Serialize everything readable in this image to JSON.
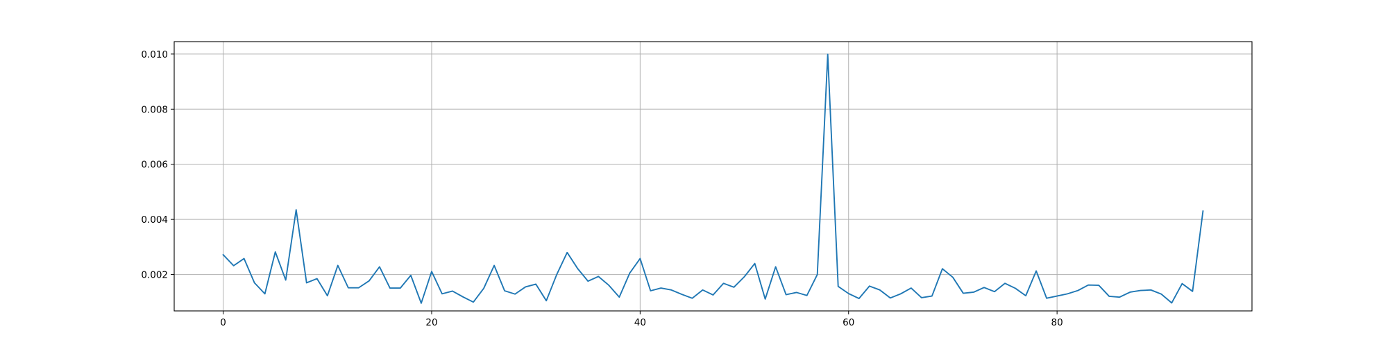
{
  "chart_data": {
    "type": "line",
    "title": "",
    "xlabel": "",
    "ylabel": "",
    "xlim": [
      -4.7,
      98.7
    ],
    "ylim": [
      0.00068,
      0.01045
    ],
    "grid": true,
    "x_ticks": [
      0,
      20,
      40,
      60,
      80
    ],
    "x_tick_labels": [
      "0",
      "20",
      "40",
      "60",
      "80"
    ],
    "y_ticks": [
      0.002,
      0.004,
      0.006,
      0.008,
      0.01
    ],
    "y_tick_labels": [
      "0.002",
      "0.004",
      "0.006",
      "0.008",
      "0.010"
    ],
    "colors": {
      "series": "#1f77b4",
      "grid": "#b0b0b0",
      "axes": "#000000"
    },
    "series": [
      {
        "x": [
          0,
          1,
          2,
          3,
          4,
          5,
          6,
          7,
          8,
          9,
          10,
          11,
          12,
          13,
          14,
          15,
          16,
          17,
          18,
          19,
          20,
          21,
          22,
          23,
          24,
          25,
          26,
          27,
          28,
          29,
          30,
          31,
          32,
          33,
          34,
          35,
          36,
          37,
          38,
          39,
          40,
          41,
          42,
          43,
          44,
          45,
          46,
          47,
          48,
          49,
          50,
          51,
          52,
          53,
          54,
          55,
          56,
          57,
          58,
          59,
          60,
          61,
          62,
          63,
          64,
          65,
          66,
          67,
          68,
          69,
          70,
          71,
          72,
          73,
          74,
          75,
          76,
          77,
          78,
          79,
          80,
          81,
          82,
          83,
          84,
          85,
          86,
          87,
          88,
          89,
          90,
          91,
          92,
          93,
          94
        ],
        "values": [
          0.00272,
          0.00232,
          0.00258,
          0.0017,
          0.0013,
          0.00282,
          0.0018,
          0.00435,
          0.0017,
          0.00185,
          0.00123,
          0.00233,
          0.00152,
          0.00152,
          0.00177,
          0.00228,
          0.00151,
          0.00151,
          0.00197,
          0.00096,
          0.00211,
          0.0013,
          0.0014,
          0.00119,
          0.001,
          0.0015,
          0.00233,
          0.00141,
          0.00129,
          0.00155,
          0.00165,
          0.00105,
          0.002,
          0.0028,
          0.00222,
          0.00176,
          0.00193,
          0.00161,
          0.00118,
          0.00205,
          0.00258,
          0.00141,
          0.00151,
          0.00144,
          0.00128,
          0.00114,
          0.00144,
          0.00126,
          0.00168,
          0.00154,
          0.00192,
          0.0024,
          0.00111,
          0.00228,
          0.00127,
          0.00135,
          0.00124,
          0.002,
          0.00999,
          0.00157,
          0.00131,
          0.00113,
          0.00158,
          0.00144,
          0.00115,
          0.0013,
          0.00151,
          0.00116,
          0.00122,
          0.00221,
          0.0019,
          0.00132,
          0.00136,
          0.00153,
          0.00138,
          0.00168,
          0.0015,
          0.00123,
          0.00213,
          0.00114,
          0.00122,
          0.0013,
          0.00142,
          0.00162,
          0.00161,
          0.00121,
          0.00118,
          0.00136,
          0.00142,
          0.00144,
          0.00129,
          0.00097,
          0.00167,
          0.00139,
          0.0043
        ]
      }
    ]
  }
}
